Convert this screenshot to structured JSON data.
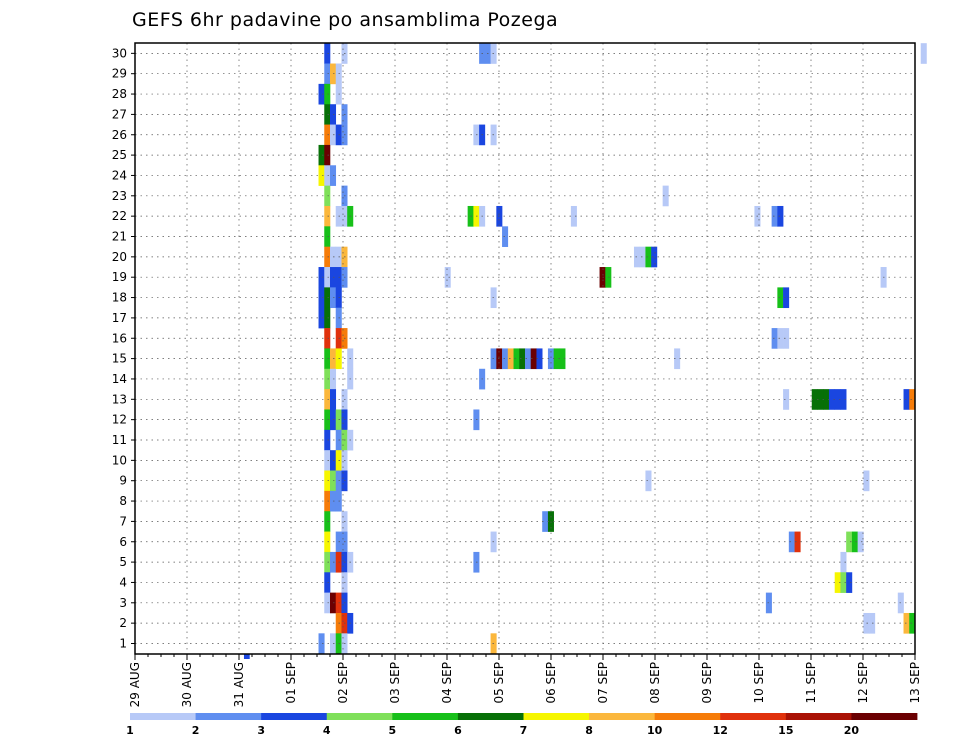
{
  "chart_data": {
    "type": "heatmap",
    "title": "GEFS 6hr padavine po ansamblima Pozega",
    "xlabel": "",
    "ylabel": "",
    "x_ticks": [
      "29 AUG",
      "30 AUG",
      "31 AUG",
      "01 SEP",
      "02 SEP",
      "03 SEP",
      "04 SEP",
      "05 SEP",
      "06 SEP",
      "07 SEP",
      "08 SEP",
      "09 SEP",
      "10 SEP",
      "11 SEP",
      "12 SEP",
      "13 SEP"
    ],
    "y_ticks": [
      "1",
      "2",
      "3",
      "4",
      "5",
      "6",
      "7",
      "8",
      "9",
      "10",
      "11",
      "12",
      "13",
      "14",
      "15",
      "16",
      "17",
      "18",
      "19",
      "20",
      "21",
      "22",
      "23",
      "24",
      "25",
      "26",
      "27",
      "28",
      "29",
      "30"
    ],
    "ylim": [
      1,
      30
    ],
    "grid": true,
    "colorbar": {
      "levels": [
        "1",
        "2",
        "3",
        "4",
        "5",
        "6",
        "7",
        "8",
        "10",
        "12",
        "15",
        "20"
      ],
      "colors": [
        "#b7c9f7",
        "#5f8ef0",
        "#1a46e0",
        "#7fe05a",
        "#17c019",
        "#077007",
        "#f6f600",
        "#fbb73c",
        "#f67c09",
        "#e0310c",
        "#aa1205",
        "#6b0002"
      ]
    },
    "cells": [
      [
        33,
        30,
        2
      ],
      [
        36,
        30,
        0
      ],
      [
        60,
        30,
        1
      ],
      [
        61,
        30,
        1
      ],
      [
        62,
        30,
        0
      ],
      [
        137,
        30,
        0
      ],
      [
        33,
        29,
        1
      ],
      [
        34,
        29,
        7
      ],
      [
        35,
        29,
        0
      ],
      [
        32,
        28,
        2
      ],
      [
        33,
        28,
        4
      ],
      [
        35,
        28,
        0
      ],
      [
        33,
        27,
        5
      ],
      [
        34,
        27,
        2
      ],
      [
        36,
        27,
        1
      ],
      [
        33,
        26,
        8
      ],
      [
        34,
        26,
        0
      ],
      [
        35,
        26,
        2
      ],
      [
        36,
        26,
        1
      ],
      [
        59,
        26,
        0
      ],
      [
        60,
        26,
        2
      ],
      [
        62,
        26,
        0
      ],
      [
        32,
        25,
        5
      ],
      [
        33,
        25,
        11
      ],
      [
        32,
        24,
        6
      ],
      [
        33,
        24,
        0
      ],
      [
        34,
        24,
        1
      ],
      [
        33,
        23,
        3
      ],
      [
        36,
        23,
        1
      ],
      [
        92,
        23,
        0
      ],
      [
        33,
        22,
        7
      ],
      [
        35,
        22,
        0
      ],
      [
        36,
        22,
        0
      ],
      [
        37,
        22,
        4
      ],
      [
        58,
        22,
        4
      ],
      [
        59,
        22,
        6
      ],
      [
        60,
        22,
        0
      ],
      [
        63,
        22,
        2
      ],
      [
        76,
        22,
        0
      ],
      [
        108,
        22,
        0
      ],
      [
        111,
        22,
        1
      ],
      [
        112,
        22,
        2
      ],
      [
        33,
        21,
        4
      ],
      [
        64,
        21,
        1
      ],
      [
        33,
        20,
        8
      ],
      [
        34,
        20,
        0
      ],
      [
        35,
        20,
        0
      ],
      [
        36,
        20,
        7
      ],
      [
        87,
        20,
        0
      ],
      [
        88,
        20,
        0
      ],
      [
        89,
        20,
        4
      ],
      [
        90,
        20,
        2
      ],
      [
        32,
        19,
        2
      ],
      [
        33,
        19,
        0
      ],
      [
        34,
        19,
        2
      ],
      [
        35,
        19,
        2
      ],
      [
        36,
        19,
        1
      ],
      [
        54,
        19,
        0
      ],
      [
        81,
        19,
        11
      ],
      [
        82,
        19,
        4
      ],
      [
        130,
        19,
        0
      ],
      [
        32,
        18,
        2
      ],
      [
        33,
        18,
        5
      ],
      [
        34,
        18,
        1
      ],
      [
        35,
        18,
        2
      ],
      [
        62,
        18,
        0
      ],
      [
        112,
        18,
        4
      ],
      [
        113,
        18,
        2
      ],
      [
        32,
        17,
        2
      ],
      [
        33,
        17,
        5
      ],
      [
        35,
        17,
        1
      ],
      [
        33,
        16,
        9
      ],
      [
        35,
        16,
        9
      ],
      [
        36,
        16,
        8
      ],
      [
        111,
        16,
        1
      ],
      [
        112,
        16,
        0
      ],
      [
        113,
        16,
        0
      ],
      [
        33,
        15,
        4
      ],
      [
        34,
        15,
        7
      ],
      [
        35,
        15,
        6
      ],
      [
        37,
        15,
        0
      ],
      [
        62,
        15,
        1
      ],
      [
        63,
        15,
        11
      ],
      [
        64,
        15,
        1
      ],
      [
        65,
        15,
        7
      ],
      [
        66,
        15,
        4
      ],
      [
        67,
        15,
        5
      ],
      [
        68,
        15,
        1
      ],
      [
        69,
        15,
        11
      ],
      [
        70,
        15,
        2
      ],
      [
        72,
        15,
        1
      ],
      [
        73,
        15,
        4
      ],
      [
        74,
        15,
        4
      ],
      [
        94,
        15,
        0
      ],
      [
        33,
        14,
        3
      ],
      [
        34,
        14,
        0
      ],
      [
        37,
        14,
        0
      ],
      [
        60,
        14,
        1
      ],
      [
        33,
        13,
        7
      ],
      [
        34,
        13,
        2
      ],
      [
        36,
        13,
        0
      ],
      [
        113,
        13,
        0
      ],
      [
        118,
        13,
        5
      ],
      [
        119,
        13,
        5
      ],
      [
        120,
        13,
        5
      ],
      [
        121,
        13,
        2
      ],
      [
        122,
        13,
        2
      ],
      [
        123,
        13,
        2
      ],
      [
        134,
        13,
        2
      ],
      [
        135,
        13,
        8
      ],
      [
        33,
        12,
        4
      ],
      [
        34,
        12,
        2
      ],
      [
        35,
        12,
        3
      ],
      [
        36,
        12,
        2
      ],
      [
        59,
        12,
        1
      ],
      [
        33,
        11,
        2
      ],
      [
        35,
        11,
        1
      ],
      [
        36,
        11,
        3
      ],
      [
        37,
        11,
        0
      ],
      [
        33,
        10,
        0
      ],
      [
        34,
        10,
        2
      ],
      [
        35,
        10,
        6
      ],
      [
        36,
        10,
        0
      ],
      [
        33,
        9,
        6
      ],
      [
        34,
        9,
        3
      ],
      [
        35,
        9,
        1
      ],
      [
        36,
        9,
        2
      ],
      [
        89,
        9,
        0
      ],
      [
        127,
        9,
        0
      ],
      [
        33,
        8,
        8
      ],
      [
        34,
        8,
        1
      ],
      [
        35,
        8,
        1
      ],
      [
        33,
        7,
        4
      ],
      [
        36,
        7,
        0
      ],
      [
        71,
        7,
        1
      ],
      [
        72,
        7,
        5
      ],
      [
        33,
        6,
        6
      ],
      [
        35,
        6,
        1
      ],
      [
        36,
        6,
        1
      ],
      [
        62,
        6,
        0
      ],
      [
        114,
        6,
        1
      ],
      [
        115,
        6,
        9
      ],
      [
        124,
        6,
        3
      ],
      [
        125,
        6,
        4
      ],
      [
        126,
        6,
        0
      ],
      [
        33,
        5,
        3
      ],
      [
        34,
        5,
        1
      ],
      [
        35,
        5,
        9
      ],
      [
        36,
        5,
        2
      ],
      [
        37,
        5,
        0
      ],
      [
        59,
        5,
        1
      ],
      [
        123,
        5,
        0
      ],
      [
        33,
        4,
        2
      ],
      [
        36,
        4,
        0
      ],
      [
        122,
        4,
        6
      ],
      [
        123,
        4,
        3
      ],
      [
        124,
        4,
        2
      ],
      [
        33,
        3,
        0
      ],
      [
        34,
        3,
        11
      ],
      [
        35,
        3,
        9
      ],
      [
        36,
        3,
        2
      ],
      [
        110,
        3,
        1
      ],
      [
        133,
        3,
        0
      ],
      [
        35,
        2,
        8
      ],
      [
        36,
        2,
        9
      ],
      [
        37,
        2,
        2
      ],
      [
        127,
        2,
        0
      ],
      [
        128,
        2,
        0
      ],
      [
        134,
        2,
        7
      ],
      [
        135,
        2,
        4
      ],
      [
        32,
        1,
        1
      ],
      [
        34,
        1,
        0
      ],
      [
        35,
        1,
        4
      ],
      [
        36,
        1,
        0
      ],
      [
        62,
        1,
        7
      ]
    ]
  }
}
